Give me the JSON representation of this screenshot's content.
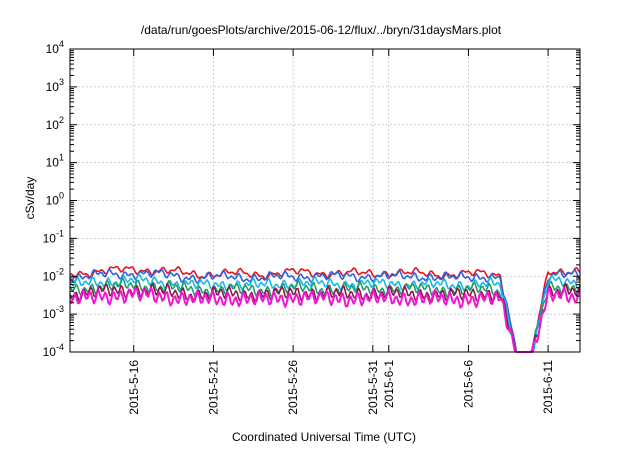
{
  "chart_data": {
    "type": "line",
    "title": "/data/run/goesPlots/archive/2015-06-12/flux/../bryn/31daysMars.plot",
    "xlabel": "Coordinated Universal Time (UTC)",
    "ylabel": "cSv/day",
    "y_scale": "log",
    "ylim": [
      0.0001,
      10000
    ],
    "xlim": [
      "2015-05-12",
      "2015-06-13"
    ],
    "y_ticks": [
      {
        "mant": "10",
        "exp": "-4",
        "value": 0.0001
      },
      {
        "mant": "10",
        "exp": "-3",
        "value": 0.001
      },
      {
        "mant": "10",
        "exp": "-2",
        "value": 0.01
      },
      {
        "mant": "10",
        "exp": "-1",
        "value": 0.1
      },
      {
        "mant": "10",
        "exp": "0",
        "value": 1
      },
      {
        "mant": "10",
        "exp": "1",
        "value": 10
      },
      {
        "mant": "10",
        "exp": "2",
        "value": 100
      },
      {
        "mant": "10",
        "exp": "3",
        "value": 1000
      },
      {
        "mant": "10",
        "exp": "4",
        "value": 10000
      }
    ],
    "x_ticks": [
      {
        "label": "2015-5-16",
        "date": "2015-05-16"
      },
      {
        "label": "2015-5-21",
        "date": "2015-05-21"
      },
      {
        "label": "2015-5-26",
        "date": "2015-05-26"
      },
      {
        "label": "2015-5-31",
        "date": "2015-05-31"
      },
      {
        "label": "2015-6-1",
        "date": "2015-06-01"
      },
      {
        "label": "2015-6-6",
        "date": "2015-06-06"
      },
      {
        "label": "2015-6-11",
        "date": "2015-06-11"
      }
    ],
    "grid": true,
    "gap": [
      "2015-06-09",
      "2015-06-10"
    ],
    "series": [
      {
        "color": "#e8141b",
        "x": [
          "2015-05-12",
          "2015-05-14",
          "2015-05-16",
          "2015-05-18",
          "2015-05-20",
          "2015-05-22",
          "2015-05-24",
          "2015-05-26",
          "2015-05-28",
          "2015-05-30",
          "2015-06-01",
          "2015-06-03",
          "2015-06-05",
          "2015-06-07",
          "2015-06-08",
          "2015-06-09",
          "2015-06-10",
          "2015-06-11",
          "2015-06-12",
          "2015-06-13"
        ],
        "values": [
          0.011,
          0.014,
          0.015,
          0.014,
          0.011,
          0.012,
          0.011,
          0.013,
          0.012,
          0.012,
          0.012,
          0.012,
          0.011,
          0.012,
          0.011,
          0.0001,
          0.0001,
          0.014,
          0.014,
          0.013
        ]
      },
      {
        "color": "#2b63e0",
        "x": [
          "2015-05-12",
          "2015-05-14",
          "2015-05-16",
          "2015-05-18",
          "2015-05-20",
          "2015-05-22",
          "2015-05-24",
          "2015-05-26",
          "2015-05-28",
          "2015-05-30",
          "2015-06-01",
          "2015-06-03",
          "2015-06-05",
          "2015-06-07",
          "2015-06-08",
          "2015-06-09",
          "2015-06-10",
          "2015-06-11",
          "2015-06-12",
          "2015-06-13"
        ],
        "values": [
          0.009,
          0.011,
          0.012,
          0.011,
          0.009,
          0.01,
          0.009,
          0.01,
          0.01,
          0.01,
          0.01,
          0.01,
          0.009,
          0.01,
          0.009,
          0.0001,
          0.0001,
          0.011,
          0.011,
          0.01
        ]
      },
      {
        "color": "#18b8e6",
        "x": [
          "2015-05-12",
          "2015-05-14",
          "2015-05-16",
          "2015-05-18",
          "2015-05-20",
          "2015-05-22",
          "2015-05-24",
          "2015-05-26",
          "2015-05-28",
          "2015-05-30",
          "2015-06-01",
          "2015-06-03",
          "2015-06-05",
          "2015-06-07",
          "2015-06-08",
          "2015-06-09",
          "2015-06-10",
          "2015-06-11",
          "2015-06-12",
          "2015-06-13"
        ],
        "values": [
          0.0058,
          0.0072,
          0.0078,
          0.007,
          0.0058,
          0.0062,
          0.0058,
          0.0066,
          0.0064,
          0.0062,
          0.0063,
          0.0062,
          0.0058,
          0.0063,
          0.0058,
          0.0001,
          0.0001,
          0.0072,
          0.0072,
          0.0066
        ]
      },
      {
        "color": "#1f9e6a",
        "x": [
          "2015-05-12",
          "2015-05-14",
          "2015-05-16",
          "2015-05-18",
          "2015-05-20",
          "2015-05-22",
          "2015-05-24",
          "2015-05-26",
          "2015-05-28",
          "2015-05-30",
          "2015-06-01",
          "2015-06-03",
          "2015-06-05",
          "2015-06-07",
          "2015-06-08",
          "2015-06-09",
          "2015-06-10",
          "2015-06-11",
          "2015-06-12",
          "2015-06-13"
        ],
        "values": [
          0.0042,
          0.0054,
          0.0058,
          0.0052,
          0.0042,
          0.0046,
          0.0042,
          0.0049,
          0.0047,
          0.0046,
          0.0046,
          0.0046,
          0.0042,
          0.0046,
          0.0042,
          0.0001,
          0.0001,
          0.0054,
          0.0053,
          0.0049
        ]
      },
      {
        "color": "#8b1a4a",
        "x": [
          "2015-05-12",
          "2015-05-14",
          "2015-05-16",
          "2015-05-18",
          "2015-05-20",
          "2015-05-22",
          "2015-05-24",
          "2015-05-26",
          "2015-05-28",
          "2015-05-30",
          "2015-06-01",
          "2015-06-03",
          "2015-06-05",
          "2015-06-07",
          "2015-06-08",
          "2015-06-09",
          "2015-06-10",
          "2015-06-11",
          "2015-06-12",
          "2015-06-13"
        ],
        "values": [
          0.0032,
          0.004,
          0.0043,
          0.0039,
          0.0032,
          0.0035,
          0.0032,
          0.0037,
          0.0035,
          0.0034,
          0.0035,
          0.0034,
          0.0032,
          0.0035,
          0.0032,
          0.0001,
          0.0001,
          0.004,
          0.004,
          0.0037
        ]
      },
      {
        "color": "#f016d6",
        "x": [
          "2015-05-12",
          "2015-05-14",
          "2015-05-16",
          "2015-05-18",
          "2015-05-20",
          "2015-05-22",
          "2015-05-24",
          "2015-05-26",
          "2015-05-28",
          "2015-05-30",
          "2015-06-01",
          "2015-06-03",
          "2015-06-05",
          "2015-06-07",
          "2015-06-08",
          "2015-06-09",
          "2015-06-10",
          "2015-06-11",
          "2015-06-12",
          "2015-06-13"
        ],
        "values": [
          0.0024,
          0.003,
          0.0033,
          0.0029,
          0.0024,
          0.0026,
          0.0024,
          0.0028,
          0.0026,
          0.0026,
          0.0026,
          0.0026,
          0.0024,
          0.0026,
          0.0024,
          0.0001,
          0.0001,
          0.003,
          0.003,
          0.0028
        ]
      }
    ]
  }
}
